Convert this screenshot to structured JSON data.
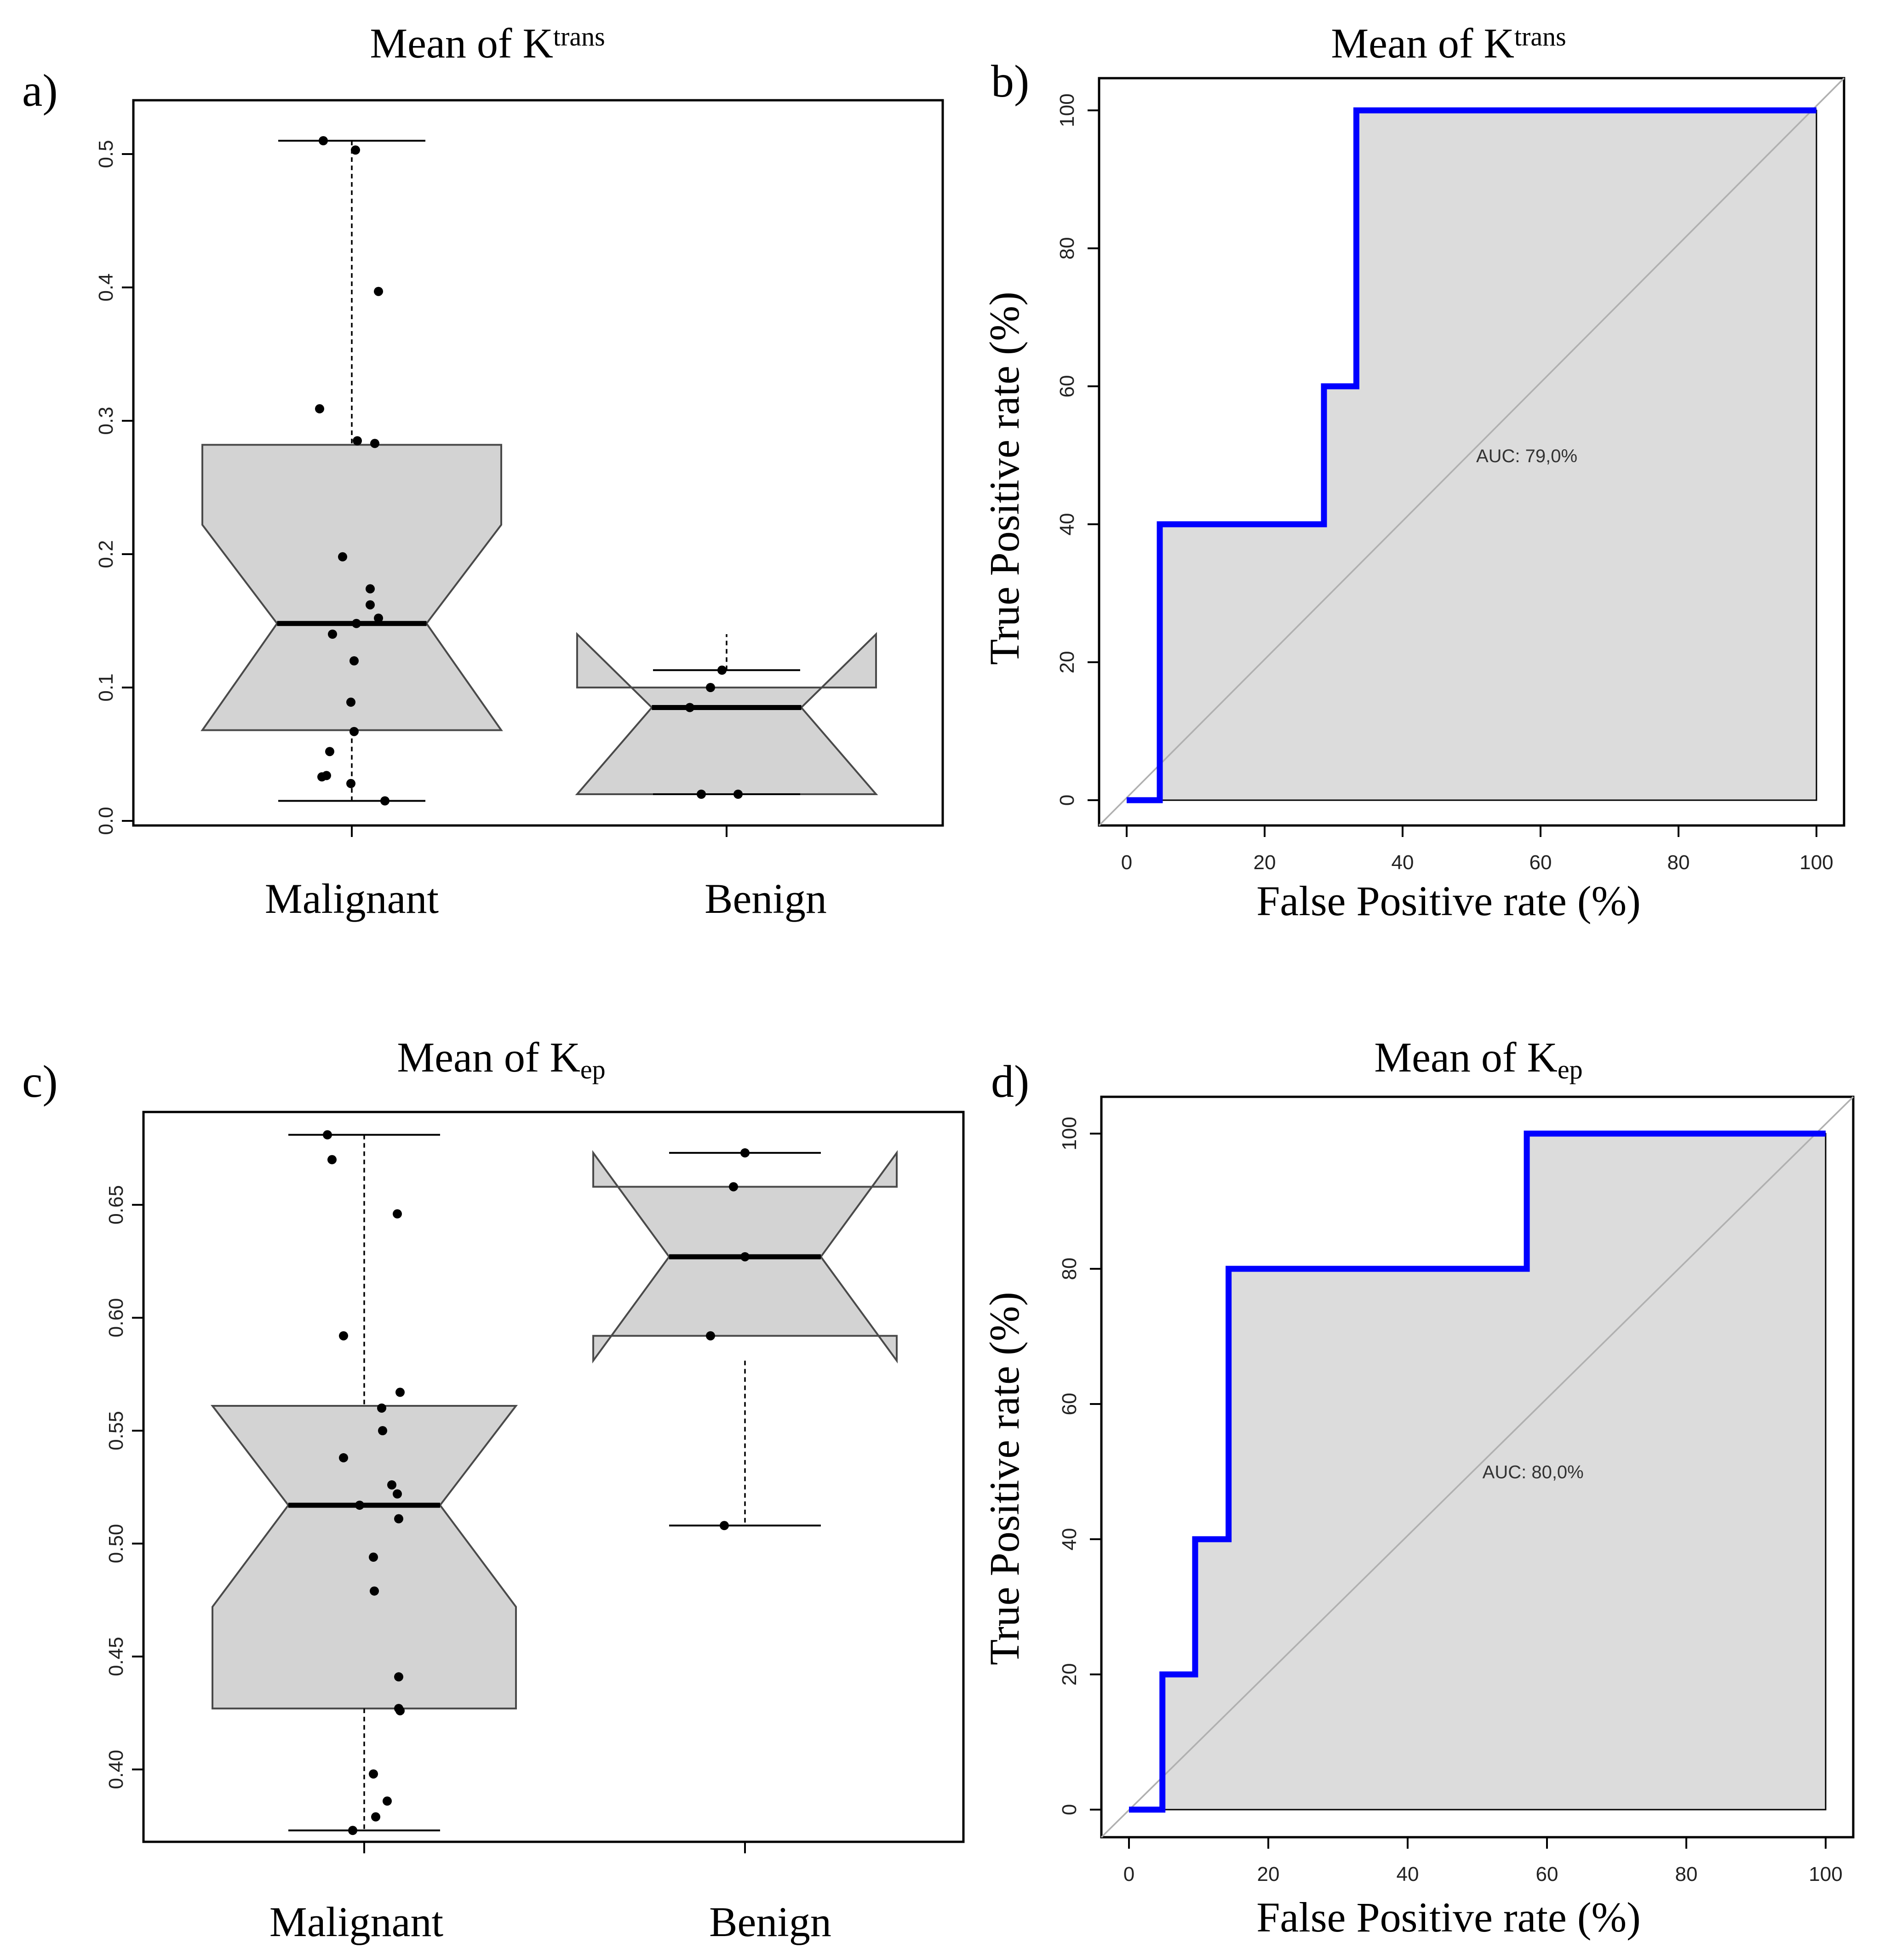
{
  "panels": [
    {
      "letter": "a)",
      "title_main": "Mean of K",
      "title_script": "trans",
      "title_script_type": "sup"
    },
    {
      "letter": "b)",
      "title_main": "Mean of K",
      "title_script": "trans",
      "title_script_type": "sup"
    },
    {
      "letter": "c)",
      "title_main": "Mean of K",
      "title_script": "ep",
      "title_script_type": "sub"
    },
    {
      "letter": "d)",
      "title_main": "Mean of K",
      "title_script": "ep",
      "title_script_type": "sub"
    }
  ],
  "colors": {
    "box_fill": "#d3d3d3",
    "roc_fill": "#dcdcdc",
    "roc_line": "#0000ff",
    "diagonal": "#b0b0b0",
    "points": "#000000"
  },
  "chart_data": [
    {
      "type": "boxplot",
      "notched": true,
      "categories": [
        "Malignant",
        "Benign"
      ],
      "ylim": [
        0,
        0.53
      ],
      "yticks": [
        0.0,
        0.1,
        0.2,
        0.3,
        0.4,
        0.5
      ],
      "ytick_labels": [
        "0.0",
        "0.1",
        "0.2",
        "0.3",
        "0.4",
        "0.5"
      ],
      "boxes": [
        {
          "name": "Malignant",
          "min": 0.015,
          "q1": 0.068,
          "median": 0.148,
          "q3": 0.282,
          "max": 0.51,
          "notch_low": 0.068,
          "notch_high": 0.222,
          "points": [
            0.51,
            0.503,
            0.397,
            0.309,
            0.285,
            0.283,
            0.198,
            0.174,
            0.162,
            0.152,
            0.148,
            0.14,
            0.12,
            0.089,
            0.067,
            0.052,
            0.034,
            0.033,
            0.028,
            0.015
          ]
        },
        {
          "name": "Benign",
          "min": 0.02,
          "q1": 0.02,
          "median": 0.085,
          "q3": 0.1,
          "max": 0.113,
          "notch_low": 0.02,
          "notch_high": 0.14,
          "points": [
            0.113,
            0.1,
            0.085,
            0.02,
            0.02
          ]
        }
      ]
    },
    {
      "type": "line",
      "subtype": "roc",
      "xlabel": "False Positive rate (%)",
      "ylabel": "True Positive rate (%)",
      "xlim": [
        0,
        100
      ],
      "ylim": [
        0,
        100
      ],
      "xticks": [
        0,
        20,
        40,
        60,
        80,
        100
      ],
      "yticks": [
        0,
        20,
        40,
        60,
        80,
        100
      ],
      "annotation": "AUC: 79,0%",
      "annotation_pos": [
        58,
        49
      ],
      "x": [
        0,
        4.8,
        4.8,
        28.6,
        28.6,
        33.3,
        33.3,
        100
      ],
      "y": [
        0,
        0,
        40,
        40,
        60,
        60,
        100,
        100
      ]
    },
    {
      "type": "boxplot",
      "notched": true,
      "categories": [
        "Malignant",
        "Benign"
      ],
      "ylim": [
        0.37,
        0.685
      ],
      "yticks": [
        0.4,
        0.45,
        0.5,
        0.55,
        0.6,
        0.65
      ],
      "ytick_labels": [
        "0.40",
        "0.45",
        "0.50",
        "0.55",
        "0.60",
        "0.65"
      ],
      "boxes": [
        {
          "name": "Malignant",
          "min": 0.373,
          "q1": 0.427,
          "median": 0.517,
          "q3": 0.561,
          "max": 0.681,
          "notch_low": 0.472,
          "notch_high": 0.561,
          "points": [
            0.681,
            0.67,
            0.646,
            0.592,
            0.567,
            0.56,
            0.55,
            0.538,
            0.526,
            0.522,
            0.517,
            0.511,
            0.494,
            0.479,
            0.441,
            0.427,
            0.426,
            0.398,
            0.386,
            0.379,
            0.373
          ]
        },
        {
          "name": "Benign",
          "min": 0.508,
          "q1": 0.592,
          "median": 0.627,
          "q3": 0.658,
          "max": 0.673,
          "notch_low": 0.581,
          "notch_high": 0.673,
          "points": [
            0.673,
            0.658,
            0.627,
            0.592,
            0.508
          ]
        }
      ]
    },
    {
      "type": "line",
      "subtype": "roc",
      "xlabel": "False Positive rate (%)",
      "ylabel": "True Positive rate (%)",
      "xlim": [
        0,
        100
      ],
      "ylim": [
        0,
        100
      ],
      "xticks": [
        0,
        20,
        40,
        60,
        80,
        100
      ],
      "yticks": [
        0,
        20,
        40,
        60,
        80,
        100
      ],
      "annotation": "AUC: 80,0%",
      "annotation_pos": [
        58,
        49
      ],
      "x": [
        0,
        4.8,
        4.8,
        9.5,
        9.5,
        14.3,
        14.3,
        57.1,
        57.1,
        100
      ],
      "y": [
        0,
        0,
        20,
        20,
        40,
        40,
        80,
        80,
        100,
        100
      ]
    }
  ]
}
